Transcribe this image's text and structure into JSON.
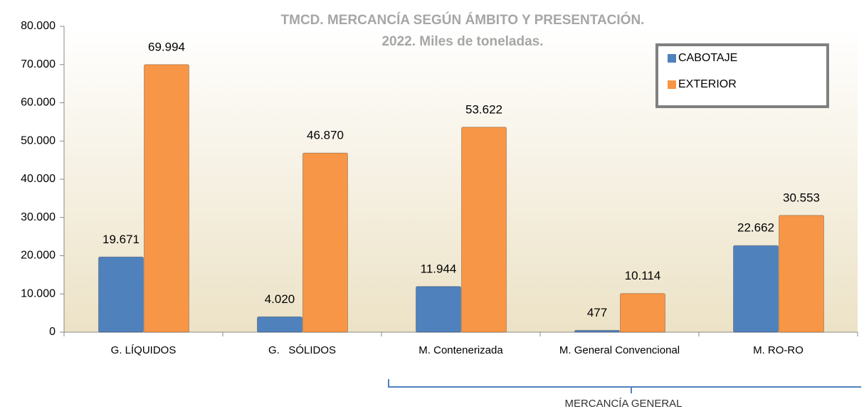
{
  "chart_data": {
    "type": "bar",
    "title": [
      "TMCD. MERCANCÍA SEGÚN ÁMBITO Y PRESENTACIÓN.",
      "2022. Miles de toneladas."
    ],
    "categories": [
      "G. LÍQUIDOS",
      "G.   SÓLIDOS",
      "M. Contenerizada",
      "M. General Convencional",
      "M. RO-RO"
    ],
    "series": [
      {
        "name": "CABOTAJE",
        "color": "#4f81bd",
        "values": [
          19671,
          4020,
          11944,
          477,
          22662
        ],
        "value_labels": [
          "19.671",
          "4.020",
          "11.944",
          "477",
          "22.662"
        ]
      },
      {
        "name": "EXTERIOR",
        "color": "#f79646",
        "values": [
          69994,
          46870,
          53622,
          10114,
          30553
        ],
        "value_labels": [
          "69.994",
          "46.870",
          "53.622",
          "10.114",
          "30.553"
        ]
      }
    ],
    "ylim": [
      0,
      80000
    ],
    "yticks": [
      0,
      {
        "value": 10000,
        "label": "10.000"
      },
      {
        "value": 20000,
        "label": "20.000"
      },
      {
        "value": 30000,
        "label": "30.000"
      },
      {
        "value": 40000,
        "label": "40.000"
      },
      {
        "value": 50000,
        "label": "50.000"
      },
      {
        "value": 60000,
        "label": "60.000"
      },
      {
        "value": 70000,
        "label": "70.000"
      },
      {
        "value": 80000,
        "label": "80.000"
      }
    ],
    "annotation": "MERCANCÍA GENERAL",
    "legend": "top-right"
  }
}
